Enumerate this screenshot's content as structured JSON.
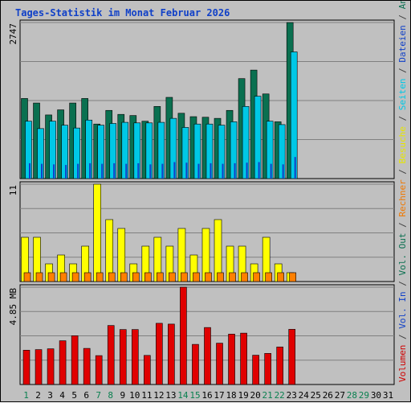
{
  "title": "Tages-Statistik im Monat Februar 2026",
  "side_legend": [
    {
      "text": "Volumen",
      "color": "#d00000"
    },
    {
      "text": " / ",
      "color": "#404040"
    },
    {
      "text": "Vol. In",
      "color": "#1040c8"
    },
    {
      "text": " / ",
      "color": "#404040"
    },
    {
      "text": "Vol. Out",
      "color": "#0a7050"
    },
    {
      "text": " / ",
      "color": "#404040"
    },
    {
      "text": "Rechner",
      "color": "#f07800"
    },
    {
      "text": " / ",
      "color": "#404040"
    },
    {
      "text": "Besuche",
      "color": "#e6e600"
    },
    {
      "text": " / ",
      "color": "#404040"
    },
    {
      "text": "Seiten",
      "color": "#00c8e6"
    },
    {
      "text": " / ",
      "color": "#404040"
    },
    {
      "text": "Dateien",
      "color": "#1040c8"
    },
    {
      "text": " / ",
      "color": "#404040"
    },
    {
      "text": "Anfragen",
      "color": "#0a7050"
    }
  ],
  "chart_data": {
    "type": "bar",
    "title": "Tages-Statistik im Monat Februar 2026",
    "days": [
      "1",
      "2",
      "3",
      "4",
      "5",
      "6",
      "7",
      "8",
      "9",
      "10",
      "11",
      "12",
      "13",
      "14",
      "15",
      "16",
      "17",
      "18",
      "19",
      "20",
      "21",
      "22",
      "23",
      "24",
      "25",
      "26",
      "27",
      "28",
      "29",
      "30",
      "31"
    ],
    "weekend_days": [
      "1",
      "7",
      "8",
      "14",
      "15",
      "21",
      "22",
      "28",
      "29"
    ],
    "colors": {
      "weekday_label": "#000000",
      "weekend_label": "#0a8050",
      "anfragen": "#0a7050",
      "dateien": "#1040c8",
      "seiten": "#00c8e6",
      "besuche": "#ffff00",
      "rechner": "#ff8000",
      "volumen": "#e00000"
    },
    "panels": [
      {
        "name": "hits",
        "max_label": "2747",
        "ymax": 2747,
        "series": [
          {
            "key": "anfragen",
            "values": [
              1410,
              1330,
              1120,
              1210,
              1330,
              1410,
              960,
              1200,
              1130,
              1110,
              1010,
              1270,
              1430,
              1150,
              1090,
              1080,
              1060,
              1200,
              1760,
              1910,
              1490,
              1000,
              2747,
              0,
              0,
              0,
              0,
              0,
              0,
              0,
              0
            ]
          },
          {
            "key": "dateien",
            "values": [
              1010,
              880,
              1010,
              940,
              890,
              1030,
              940,
              970,
              990,
              980,
              980,
              990,
              1060,
              900,
              960,
              960,
              940,
              1000,
              1270,
              1450,
              1010,
              950,
              2230,
              0,
              0,
              0,
              0,
              0,
              0,
              0,
              0
            ]
          },
          {
            "key": "seiten",
            "values": [
              270,
              260,
              250,
              240,
              260,
              270,
              260,
              270,
              260,
              270,
              250,
              260,
              290,
              280,
              260,
              270,
              260,
              270,
              280,
              290,
              260,
              250,
              380,
              0,
              0,
              0,
              0,
              0,
              0,
              0,
              0
            ]
          }
        ]
      },
      {
        "name": "visits",
        "max_label": "11",
        "ymax": 11,
        "series": [
          {
            "key": "besuche",
            "values": [
              5,
              5,
              2,
              3,
              2,
              4,
              11,
              7,
              6,
              2,
              4,
              5,
              4,
              6,
              3,
              6,
              7,
              4,
              4,
              2,
              5,
              2,
              1,
              0,
              0,
              0,
              0,
              0,
              0,
              0,
              0
            ]
          },
          {
            "key": "rechner",
            "values": [
              1,
              1,
              1,
              1,
              1,
              1,
              1,
              1,
              1,
              1,
              1,
              1,
              1,
              1,
              1,
              1,
              1,
              1,
              1,
              1,
              1,
              1,
              1,
              0,
              0,
              0,
              0,
              0,
              0,
              0,
              0
            ]
          }
        ]
      },
      {
        "name": "volume",
        "max_label": "4.85 MB",
        "ymax": 4.85,
        "series": [
          {
            "key": "volumen",
            "values": [
              1.71,
              1.74,
              1.78,
              2.18,
              2.43,
              1.8,
              1.44,
              2.94,
              2.74,
              2.74,
              1.45,
              3.05,
              3.01,
              4.85,
              2.0,
              2.84,
              2.06,
              2.51,
              2.56,
              1.46,
              1.55,
              1.87,
              2.75,
              0,
              0,
              0,
              0,
              0,
              0,
              0,
              0
            ]
          }
        ]
      }
    ]
  }
}
